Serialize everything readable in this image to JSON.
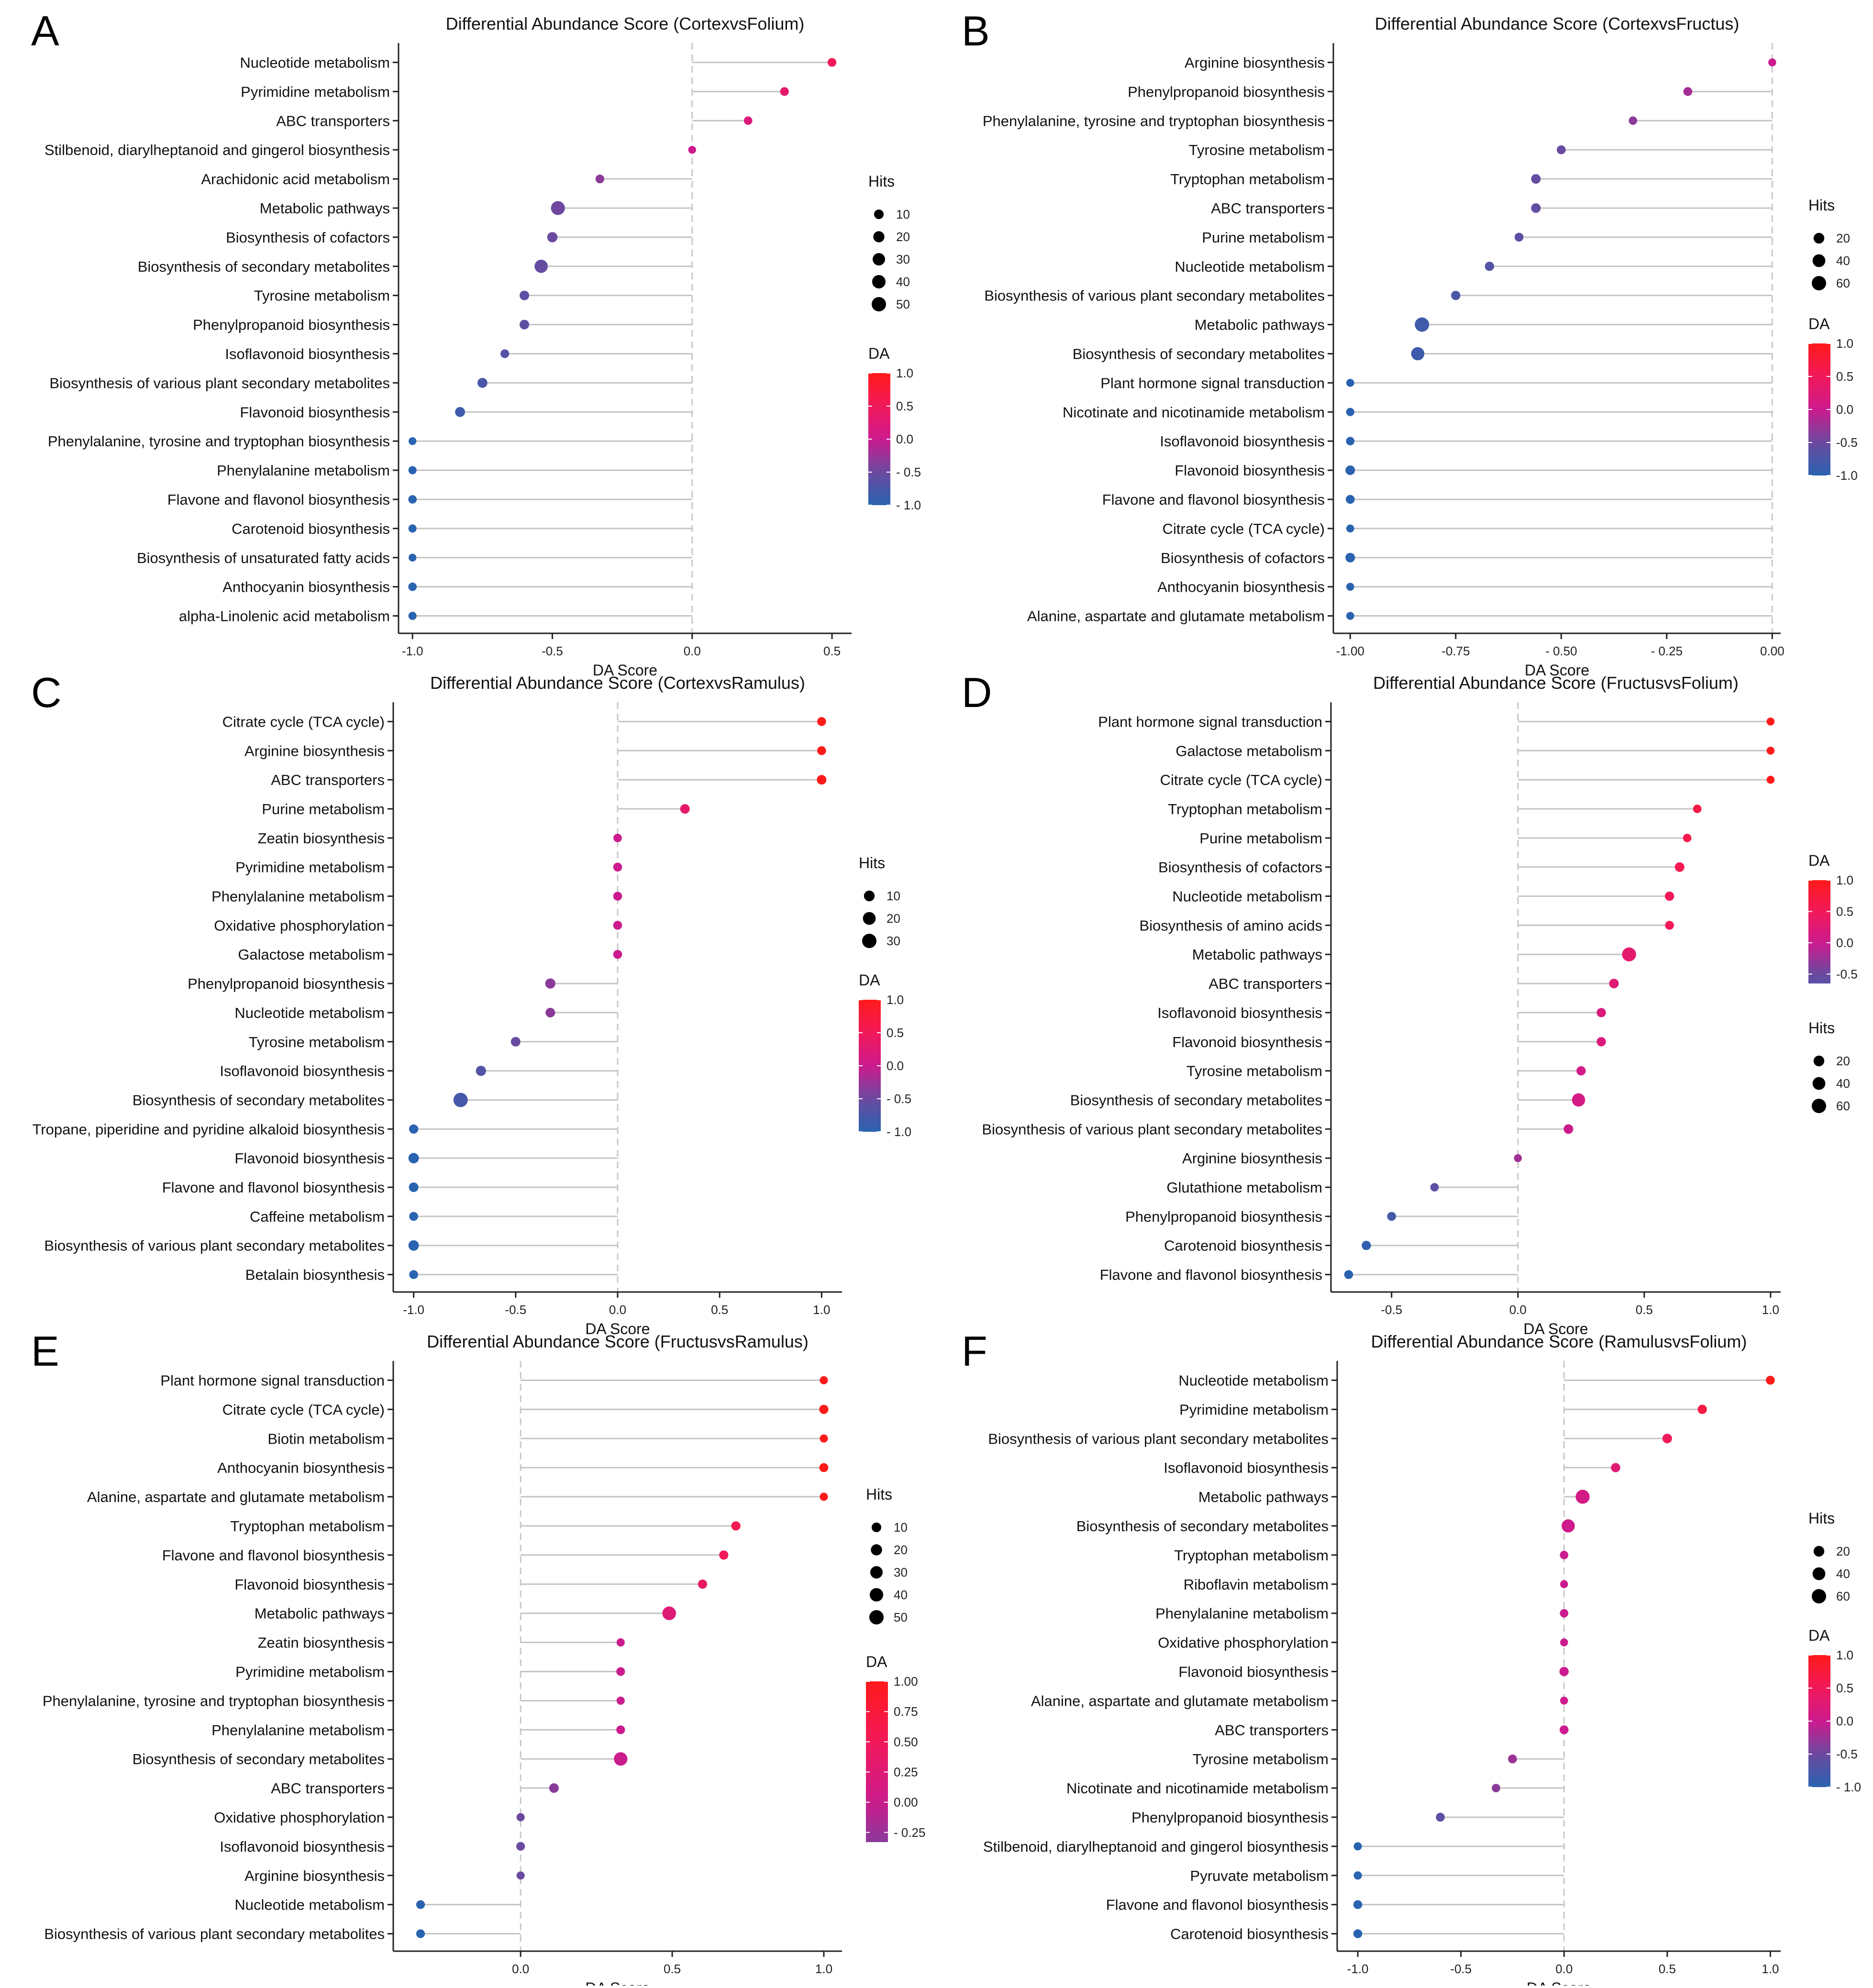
{
  "chart_data": [
    {
      "panel_label": "A",
      "type": "lollipop",
      "title": "Differential Abundance Score (CortexvsFolium)",
      "xlabel": "DA Score",
      "xlim": [
        -1.05,
        0.57
      ],
      "xticks": [
        -1.0,
        -0.5,
        0.0,
        0.5
      ],
      "xtick_labels": [
        "-1.0",
        "-0.5",
        "0.0",
        "0.5"
      ],
      "hits_legend": {
        "title": "Hits",
        "values": [
          10,
          20,
          30,
          40,
          50
        ],
        "labels": [
          "10",
          "20",
          "30",
          "40",
          "50"
        ],
        "max": 50
      },
      "da_legend": {
        "title": "DA",
        "range": [
          -1.0,
          1.0
        ],
        "ticks": [
          1.0,
          0.5,
          0.0,
          -0.5,
          -1.0
        ],
        "labels": [
          "1.0",
          "0.5",
          "0.0",
          "- 0.5",
          "- 1.0"
        ]
      },
      "legend_order": "hits-first",
      "categories": [
        "Nucleotide metabolism",
        "Pyrimidine metabolism",
        "ABC transporters",
        "Stilbenoid, diarylheptanoid and gingerol biosynthesis",
        "Arachidonic acid metabolism",
        "Metabolic pathways",
        "Biosynthesis of cofactors",
        "Biosynthesis of secondary metabolites",
        "Tyrosine metabolism",
        "Phenylpropanoid biosynthesis",
        "Isoflavonoid biosynthesis",
        "Biosynthesis of various plant secondary metabolites",
        "Flavonoid biosynthesis",
        "Phenylalanine, tyrosine and tryptophan biosynthesis",
        "Phenylalanine metabolism",
        "Flavone and flavonol biosynthesis",
        "Carotenoid biosynthesis",
        "Biosynthesis of unsaturated fatty acids",
        "Anthocyanin biosynthesis",
        "alpha-Linolenic acid metabolism"
      ],
      "values": [
        0.5,
        0.33,
        0.2,
        0.0,
        -0.33,
        -0.48,
        -0.5,
        -0.54,
        -0.6,
        -0.6,
        -0.67,
        -0.75,
        -0.83,
        -1.0,
        -1.0,
        -1.0,
        -1.0,
        -1.0,
        -1.0,
        -1.0
      ],
      "hits": [
        6,
        6,
        5,
        3,
        6,
        45,
        14,
        38,
        10,
        10,
        6,
        12,
        12,
        3,
        4,
        5,
        4,
        3,
        5,
        4
      ]
    },
    {
      "panel_label": "B",
      "type": "lollipop",
      "title": "Differential Abundance Score (CortexvsFructus)",
      "xlabel": "DA Score",
      "xlim": [
        -1.04,
        0.02
      ],
      "xticks": [
        -1.0,
        -0.75,
        -0.5,
        -0.25,
        0.0
      ],
      "xtick_labels": [
        "-1.00",
        "-0.75",
        "- 0.50",
        "- 0.25",
        "0.00"
      ],
      "hits_legend": {
        "title": "Hits",
        "values": [
          20,
          40,
          60
        ],
        "labels": [
          "20",
          "40",
          "60"
        ],
        "max": 60
      },
      "da_legend": {
        "title": "DA",
        "range": [
          -1.0,
          1.0
        ],
        "ticks": [
          1.0,
          0.5,
          0.0,
          -0.5,
          -1.0
        ],
        "labels": [
          "1.0",
          "0.5",
          "0.0",
          "-0.5",
          "-1.0"
        ]
      },
      "legend_order": "hits-first",
      "categories": [
        "Arginine biosynthesis",
        "Phenylpropanoid biosynthesis",
        "Phenylalanine, tyrosine and tryptophan biosynthesis",
        "Tyrosine metabolism",
        "Tryptophan metabolism",
        "ABC transporters",
        "Purine metabolism",
        "Nucleotide metabolism",
        "Biosynthesis of various plant secondary metabolites",
        "Metabolic pathways",
        "Biosynthesis of secondary metabolites",
        "Plant hormone signal transduction",
        "Nicotinate and nicotinamide metabolism",
        "Isoflavonoid biosynthesis",
        "Flavonoid biosynthesis",
        "Flavone and flavonol biosynthesis",
        "Citrate cycle (TCA cycle)",
        "Biosynthesis of cofactors",
        "Anthocyanin biosynthesis",
        "Alanine, aspartate and glutamate metabolism"
      ],
      "values": [
        0.0,
        -0.2,
        -0.33,
        -0.5,
        -0.56,
        -0.56,
        -0.6,
        -0.67,
        -0.75,
        -0.83,
        -0.84,
        -1.0,
        -1.0,
        -1.0,
        -1.0,
        -1.0,
        -1.0,
        -1.0,
        -1.0,
        -1.0
      ],
      "hits": [
        4,
        8,
        6,
        8,
        12,
        12,
        8,
        10,
        10,
        60,
        45,
        4,
        5,
        6,
        12,
        8,
        4,
        12,
        4,
        4
      ]
    },
    {
      "panel_label": "C",
      "type": "lollipop",
      "title": "Differential Abundance Score (CortexvsRamulus)",
      "xlabel": "DA Score",
      "xlim": [
        -1.1,
        1.1
      ],
      "xticks": [
        -1.0,
        -0.5,
        0.0,
        0.5,
        1.0
      ],
      "xtick_labels": [
        "-1.0",
        "-0.5",
        "0.0",
        "0.5",
        "1.0"
      ],
      "hits_legend": {
        "title": "Hits",
        "values": [
          10,
          20,
          30
        ],
        "labels": [
          "10",
          "20",
          "30"
        ],
        "max": 30
      },
      "da_legend": {
        "title": "DA",
        "range": [
          -1.0,
          1.0
        ],
        "ticks": [
          1.0,
          0.5,
          0.0,
          -0.5,
          -1.0
        ],
        "labels": [
          "1.0",
          "0.5",
          "0.0",
          "- 0.5",
          "- 1.0"
        ]
      },
      "legend_order": "hits-first",
      "categories": [
        "Citrate cycle (TCA cycle)",
        "Arginine biosynthesis",
        "ABC transporters",
        "Purine metabolism",
        "Zeatin biosynthesis",
        "Pyrimidine metabolism",
        "Phenylalanine metabolism",
        "Oxidative phosphorylation",
        "Galactose metabolism",
        "Phenylpropanoid biosynthesis",
        "Nucleotide metabolism",
        "Tyrosine metabolism",
        "Isoflavonoid biosynthesis",
        "Biosynthesis of secondary metabolites",
        "Tropane, piperidine and pyridine alkaloid biosynthesis",
        "Flavonoid biosynthesis",
        "Flavone and flavonol biosynthesis",
        "Caffeine metabolism",
        "Biosynthesis of various plant secondary metabolites",
        "Betalain biosynthesis"
      ],
      "values": [
        1.0,
        1.0,
        1.0,
        0.33,
        0.0,
        0.0,
        0.0,
        0.0,
        0.0,
        -0.33,
        -0.33,
        -0.5,
        -0.67,
        -0.77,
        -1.0,
        -1.0,
        -1.0,
        -1.0,
        -1.0,
        -1.0
      ],
      "hits": [
        4,
        4,
        6,
        6,
        3,
        4,
        4,
        4,
        4,
        8,
        6,
        6,
        8,
        30,
        5,
        9,
        6,
        4,
        9,
        4
      ]
    },
    {
      "panel_label": "D",
      "type": "lollipop",
      "title": "Differential Abundance Score (FructusvsFolium)",
      "xlabel": "DA Score",
      "xlim": [
        -0.74,
        1.04
      ],
      "xticks": [
        -0.5,
        0.0,
        0.5,
        1.0
      ],
      "xtick_labels": [
        "-0.5",
        "0.0",
        "0.5",
        "1.0"
      ],
      "hits_legend": {
        "title": "Hits",
        "values": [
          20,
          40,
          60
        ],
        "labels": [
          "20",
          "40",
          "60"
        ],
        "max": 60
      },
      "da_legend": {
        "title": "DA",
        "range": [
          -0.65,
          1.0
        ],
        "ticks": [
          1.0,
          0.5,
          0.0,
          -0.5
        ],
        "labels": [
          "1.0",
          "0.5",
          "0.0",
          "-0.5"
        ]
      },
      "legend_order": "da-first",
      "categories": [
        "Plant hormone signal transduction",
        "Galactose metabolism",
        "Citrate cycle (TCA cycle)",
        "Tryptophan metabolism",
        "Purine metabolism",
        "Biosynthesis of cofactors",
        "Nucleotide metabolism",
        "Biosynthesis of amino acids",
        "Metabolic pathways",
        "ABC transporters",
        "Isoflavonoid biosynthesis",
        "Flavonoid biosynthesis",
        "Tyrosine metabolism",
        "Biosynthesis of secondary metabolites",
        "Biosynthesis of various plant secondary metabolites",
        "Arginine biosynthesis",
        "Glutathione metabolism",
        "Phenylpropanoid biosynthesis",
        "Carotenoid biosynthesis",
        "Flavone and flavonol biosynthesis"
      ],
      "values": [
        1.0,
        1.0,
        1.0,
        0.71,
        0.67,
        0.64,
        0.6,
        0.6,
        0.44,
        0.38,
        0.33,
        0.33,
        0.25,
        0.24,
        0.2,
        0.0,
        -0.33,
        -0.5,
        -0.6,
        -0.67
      ],
      "hits": [
        4,
        4,
        4,
        6,
        6,
        12,
        10,
        8,
        55,
        12,
        10,
        10,
        10,
        45,
        12,
        4,
        6,
        8,
        10,
        8
      ]
    },
    {
      "panel_label": "E",
      "type": "lollipop",
      "title": "Differential Abundance Score (FructusvsRamulus)",
      "xlabel": "DA Score",
      "xlim": [
        -0.42,
        1.06
      ],
      "xticks": [
        0.0,
        0.5,
        1.0
      ],
      "xtick_labels": [
        "0.0",
        "0.5",
        "1.0"
      ],
      "hits_legend": {
        "title": "Hits",
        "values": [
          10,
          20,
          30,
          40,
          50
        ],
        "labels": [
          "10",
          "20",
          "30",
          "40",
          "50"
        ],
        "max": 50
      },
      "da_legend": {
        "title": "DA",
        "range": [
          -0.33,
          1.0
        ],
        "ticks": [
          1.0,
          0.75,
          0.5,
          0.25,
          0.0,
          -0.25
        ],
        "labels": [
          "1.00",
          "0.75",
          "0.50",
          "0.25",
          "0.00",
          "- 0.25"
        ]
      },
      "legend_order": "hits-first",
      "categories": [
        "Plant hormone signal transduction",
        "Citrate cycle (TCA cycle)",
        "Biotin metabolism",
        "Anthocyanin biosynthesis",
        "Alanine, aspartate and glutamate metabolism",
        "Tryptophan metabolism",
        "Flavone and flavonol biosynthesis",
        "Flavonoid biosynthesis",
        "Metabolic pathways",
        "Zeatin biosynthesis",
        "Pyrimidine metabolism",
        "Phenylalanine, tyrosine and tryptophan biosynthesis",
        "Phenylalanine metabolism",
        "Biosynthesis of secondary metabolites",
        "ABC transporters",
        "Oxidative phosphorylation",
        "Isoflavonoid biosynthesis",
        "Arginine biosynthesis",
        "Nucleotide metabolism",
        "Biosynthesis of various plant secondary metabolites"
      ],
      "values": [
        1.0,
        1.0,
        1.0,
        1.0,
        1.0,
        0.71,
        0.67,
        0.6,
        0.49,
        0.33,
        0.33,
        0.33,
        0.33,
        0.33,
        0.11,
        0.0,
        0.0,
        0.0,
        -0.33,
        -0.33
      ],
      "hits": [
        4,
        8,
        4,
        7,
        4,
        8,
        8,
        8,
        42,
        4,
        6,
        4,
        6,
        40,
        10,
        4,
        6,
        4,
        6,
        6
      ]
    },
    {
      "panel_label": "F",
      "type": "lollipop",
      "title": "Differential Abundance Score (RamulusvsFolium)",
      "xlabel": "DA Score",
      "xlim": [
        -1.1,
        1.05
      ],
      "xticks": [
        -1.0,
        -0.5,
        0.0,
        0.5,
        1.0
      ],
      "xtick_labels": [
        "-1.0",
        "-0.5",
        "0.0",
        "0.5",
        "1.0"
      ],
      "hits_legend": {
        "title": "Hits",
        "values": [
          20,
          40,
          60
        ],
        "labels": [
          "20",
          "40",
          "60"
        ],
        "max": 60
      },
      "da_legend": {
        "title": "DA",
        "range": [
          -1.0,
          1.0
        ],
        "ticks": [
          1.0,
          0.5,
          0.0,
          -0.5,
          -1.0
        ],
        "labels": [
          "1.0",
          "0.5",
          "0.0",
          "-0.5",
          "- 1.0"
        ]
      },
      "legend_order": "hits-first",
      "categories": [
        "Nucleotide metabolism",
        "Pyrimidine metabolism",
        "Biosynthesis of various plant secondary metabolites",
        "Isoflavonoid biosynthesis",
        "Metabolic pathways",
        "Biosynthesis of secondary metabolites",
        "Tryptophan metabolism",
        "Riboflavin metabolism",
        "Phenylalanine metabolism",
        "Oxidative phosphorylation",
        "Flavonoid biosynthesis",
        "Alanine, aspartate and glutamate metabolism",
        "ABC transporters",
        "Tyrosine metabolism",
        "Nicotinate and nicotinamide metabolism",
        "Phenylpropanoid biosynthesis",
        "Stilbenoid, diarylheptanoid and gingerol biosynthesis",
        "Pyruvate metabolism",
        "Flavone and flavonol biosynthesis",
        "Carotenoid biosynthesis"
      ],
      "values": [
        1.0,
        0.67,
        0.5,
        0.25,
        0.09,
        0.02,
        0.0,
        0.0,
        0.0,
        0.0,
        0.0,
        0.0,
        0.0,
        -0.25,
        -0.33,
        -0.6,
        -1.0,
        -1.0,
        -1.0,
        -1.0
      ],
      "hits": [
        8,
        10,
        12,
        10,
        55,
        45,
        6,
        4,
        6,
        4,
        10,
        4,
        8,
        8,
        6,
        8,
        5,
        5,
        8,
        8
      ]
    }
  ]
}
